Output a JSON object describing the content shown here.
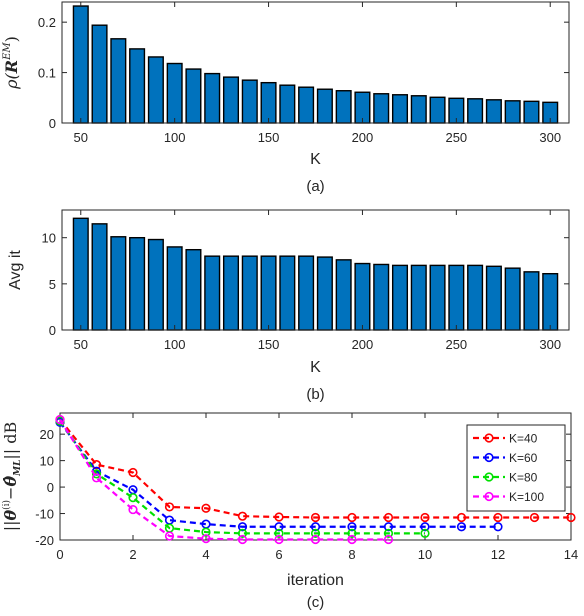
{
  "chart_data": [
    {
      "type": "bar",
      "caption": "(a)",
      "xlabel": "K",
      "ylabel": "ρ(R^EM)",
      "ylabel_main": "ρ(",
      "ylabel_sym": "R",
      "ylabel_sup": "EM",
      "ylabel_end": ")",
      "bar_color": "#0072BD",
      "xlim": [
        40,
        310
      ],
      "ylim": [
        0,
        0.24
      ],
      "xticks": [
        50,
        100,
        150,
        200,
        250,
        300
      ],
      "xtick_labels": [
        "50",
        "100",
        "150",
        "200",
        "250",
        "300"
      ],
      "yticks": [
        0,
        0.1,
        0.2
      ],
      "ytick_labels": [
        "0",
        "0.1",
        "0.2"
      ],
      "categories": [
        50,
        60,
        70,
        80,
        90,
        100,
        110,
        120,
        130,
        140,
        150,
        160,
        170,
        180,
        190,
        200,
        210,
        220,
        230,
        240,
        250,
        260,
        270,
        280,
        290,
        300
      ],
      "values": [
        0.232,
        0.194,
        0.167,
        0.147,
        0.131,
        0.118,
        0.107,
        0.098,
        0.091,
        0.085,
        0.08,
        0.075,
        0.071,
        0.067,
        0.064,
        0.061,
        0.058,
        0.056,
        0.054,
        0.051,
        0.049,
        0.048,
        0.046,
        0.044,
        0.043,
        0.041
      ]
    },
    {
      "type": "bar",
      "caption": "(b)",
      "xlabel": "K",
      "ylabel": "Avg it",
      "bar_color": "#0072BD",
      "xlim": [
        40,
        310
      ],
      "ylim": [
        0,
        13
      ],
      "xticks": [
        50,
        100,
        150,
        200,
        250,
        300
      ],
      "xtick_labels": [
        "50",
        "100",
        "150",
        "200",
        "250",
        "300"
      ],
      "yticks": [
        0,
        5,
        10
      ],
      "ytick_labels": [
        "0",
        "5",
        "10"
      ],
      "categories": [
        50,
        60,
        70,
        80,
        90,
        100,
        110,
        120,
        130,
        140,
        150,
        160,
        170,
        180,
        190,
        200,
        210,
        220,
        230,
        240,
        250,
        260,
        270,
        280,
        290,
        300
      ],
      "values": [
        12.1,
        11.5,
        10.1,
        10.0,
        9.8,
        9.0,
        8.7,
        8.0,
        8.0,
        8.0,
        8.0,
        8.0,
        8.0,
        7.9,
        7.6,
        7.2,
        7.1,
        7.0,
        7.0,
        7.0,
        7.0,
        7.0,
        6.9,
        6.7,
        6.3,
        6.1
      ]
    },
    {
      "type": "line",
      "caption": "(c)",
      "xlabel": "iteration",
      "ylabel": "‖θ^(i) − θ̂_ML‖ dB",
      "ylabel_parts": [
        "||",
        "θ",
        "(i)",
        "−",
        "θ̂",
        "ML",
        "|| dB"
      ],
      "xlim": [
        0,
        14
      ],
      "ylim": [
        -20,
        28
      ],
      "xticks": [
        0,
        2,
        4,
        6,
        8,
        10,
        12,
        14
      ],
      "xtick_labels": [
        "0",
        "2",
        "4",
        "6",
        "8",
        "10",
        "12",
        "14"
      ],
      "yticks": [
        -20,
        -10,
        0,
        10,
        20
      ],
      "ytick_labels": [
        "-20",
        "-10",
        "0",
        "10",
        "20"
      ],
      "legend_position": "top-right",
      "series": [
        {
          "name": "K=40",
          "color": "#ff0000",
          "x": [
            0,
            1,
            2,
            3,
            4,
            5,
            6,
            7,
            8,
            9,
            10,
            11,
            12,
            13,
            14
          ],
          "y": [
            25.5,
            8.5,
            5.5,
            -7.5,
            -8.0,
            -11.0,
            -11.3,
            -11.5,
            -11.5,
            -11.5,
            -11.5,
            -11.5,
            -11.5,
            -11.5,
            -11.5
          ]
        },
        {
          "name": "K=60",
          "color": "#0000ff",
          "x": [
            0,
            1,
            2,
            3,
            4,
            5,
            6,
            7,
            8,
            9,
            10,
            11,
            12
          ],
          "y": [
            24.5,
            6.0,
            -1.0,
            -12.5,
            -14.0,
            -15.0,
            -15.0,
            -15.0,
            -15.0,
            -15.0,
            -15.0,
            -15.0,
            -15.0
          ]
        },
        {
          "name": "K=80",
          "color": "#00e000",
          "x": [
            0,
            1,
            2,
            3,
            4,
            5,
            6,
            7,
            8,
            9,
            10
          ],
          "y": [
            25.0,
            5.0,
            -4.0,
            -15.5,
            -17.0,
            -17.5,
            -17.5,
            -17.5,
            -17.5,
            -17.5,
            -17.5
          ]
        },
        {
          "name": "K=100",
          "color": "#ff00ff",
          "x": [
            0,
            1,
            2,
            3,
            4,
            5,
            6,
            7,
            8,
            9
          ],
          "y": [
            25.5,
            3.5,
            -8.5,
            -18.5,
            -19.5,
            -19.8,
            -19.8,
            -19.8,
            -19.8,
            -19.8
          ]
        }
      ]
    }
  ]
}
